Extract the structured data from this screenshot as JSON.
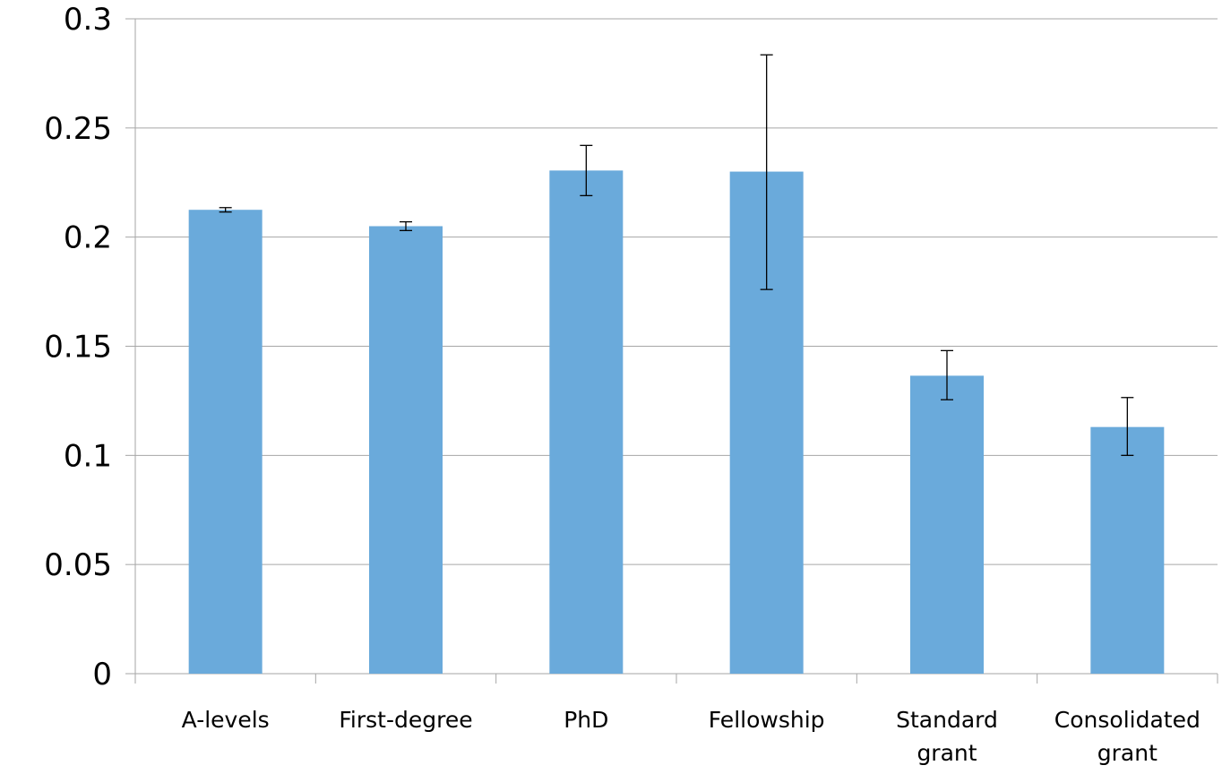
{
  "chart_data": {
    "type": "bar",
    "title": "",
    "xlabel": "",
    "ylabel": "",
    "categories": [
      [
        "A-levels"
      ],
      [
        "First-degree"
      ],
      [
        "PhD"
      ],
      [
        "Fellowship"
      ],
      [
        "Standard",
        "grant"
      ],
      [
        "Consolidated",
        "grant"
      ]
    ],
    "values": [
      0.2125,
      0.205,
      0.2305,
      0.23,
      0.1365,
      0.113
    ],
    "error_low": [
      0.2115,
      0.203,
      0.219,
      0.176,
      0.1255,
      0.1
    ],
    "error_high": [
      0.2135,
      0.207,
      0.242,
      0.2835,
      0.148,
      0.1265
    ],
    "ylim": [
      0,
      0.3
    ],
    "yticks": [
      0,
      0.05,
      0.1,
      0.15,
      0.2,
      0.25,
      0.3
    ],
    "ytick_labels": [
      "0",
      "0.05",
      "0.1",
      "0.15",
      "0.2",
      "0.25",
      "0.3"
    ],
    "grid": true,
    "legend": "none",
    "bar_color": "#6aaadb",
    "gridline_color": "#a6a6a6",
    "errorbar_color": "#000000"
  }
}
